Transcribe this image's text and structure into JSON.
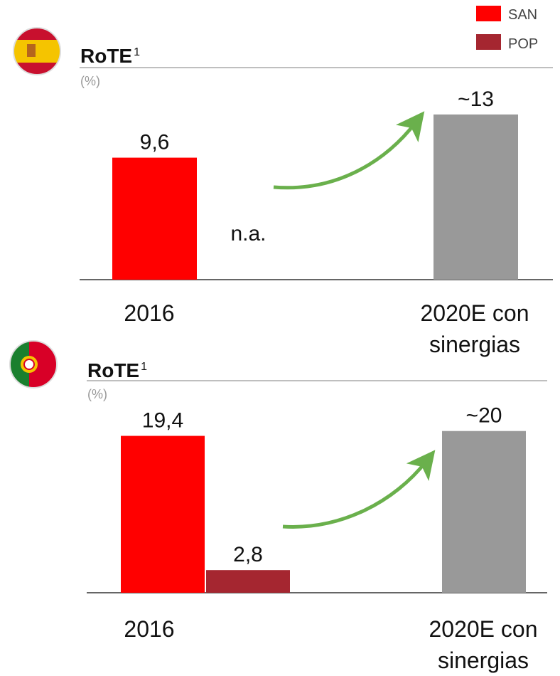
{
  "chart_data": [
    {
      "type": "bar",
      "title": "RoTE",
      "title_superscript": "1",
      "unit": "(%)",
      "categories": [
        "2016",
        "2020E con sinergias"
      ],
      "series": [
        {
          "name": "SAN",
          "color": "#ff0000",
          "values": [
            9.6,
            null
          ],
          "value_labels": [
            "9,6",
            null
          ]
        },
        {
          "name": "POP",
          "color": "#a52630",
          "values": [
            null,
            null
          ],
          "value_labels": [
            "n.a.",
            null
          ]
        },
        {
          "color": "#999999",
          "values": [
            null,
            13
          ],
          "value_labels": [
            null,
            "~13"
          ]
        }
      ],
      "ylim": [
        0,
        14
      ]
    },
    {
      "type": "bar",
      "title": "RoTE",
      "title_superscript": "1",
      "unit": "(%)",
      "categories": [
        "2016",
        "2020E con sinergias"
      ],
      "series": [
        {
          "color": "#ff0000",
          "values": [
            19.4,
            null
          ],
          "value_labels": [
            "19,4",
            null
          ]
        },
        {
          "color": "#a52630",
          "values": [
            2.8,
            null
          ],
          "value_labels": [
            "2,8",
            null
          ]
        },
        {
          "color": "#999999",
          "values": [
            null,
            20
          ],
          "value_labels": [
            null,
            "~20"
          ]
        }
      ],
      "ylim": [
        0,
        22
      ]
    }
  ]
}
